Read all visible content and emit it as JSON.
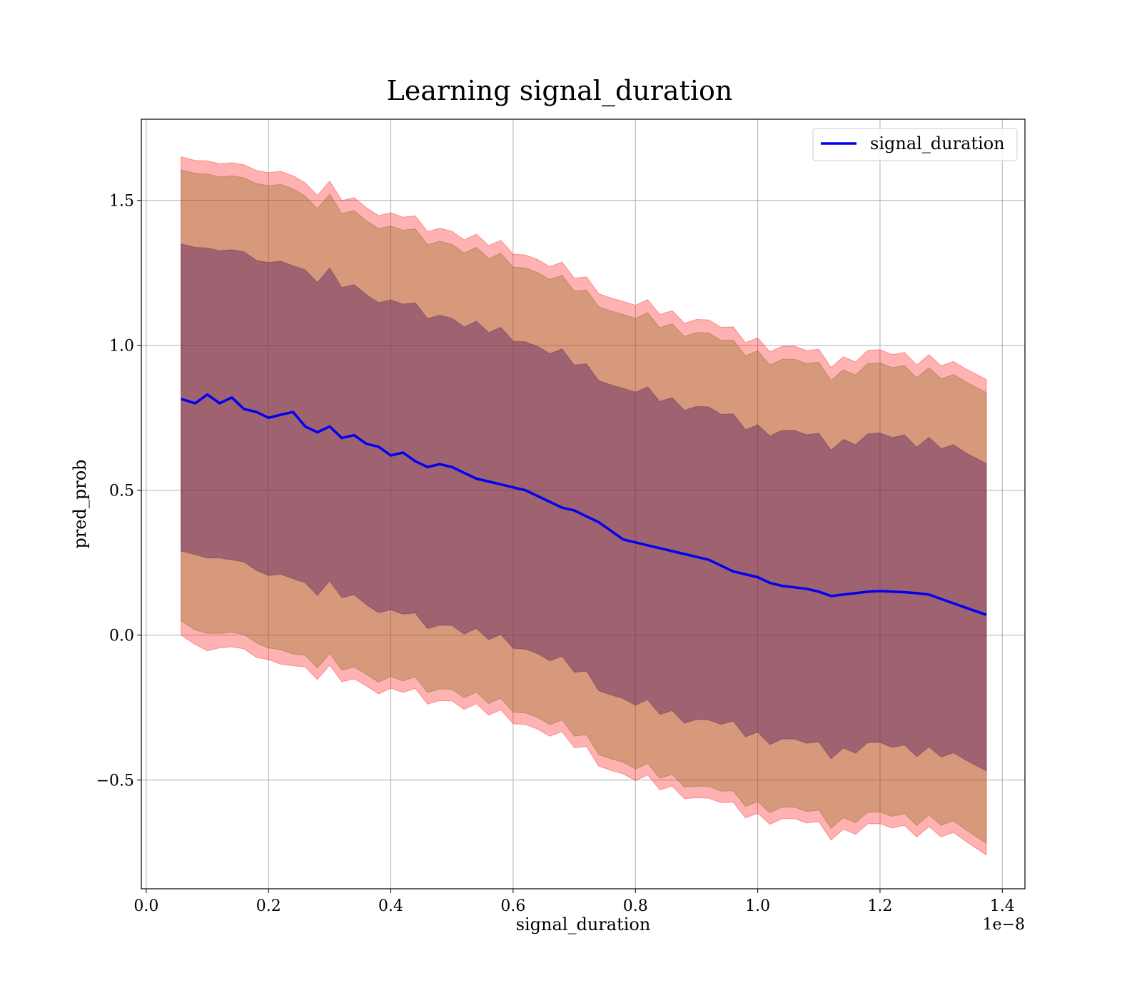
{
  "chart_data": {
    "type": "line",
    "title": "Learning signal_duration",
    "xlabel": "signal_duration",
    "ylabel": "pred_prob",
    "x_offset_label": "1e−8",
    "xlim": [
      -0.008,
      1.437
    ],
    "ylim": [
      -0.875,
      1.78
    ],
    "xticks": [
      0.0,
      0.2,
      0.4,
      0.6,
      0.8,
      1.0,
      1.2,
      1.4
    ],
    "xtick_labels": [
      "0.0",
      "0.2",
      "0.4",
      "0.6",
      "0.8",
      "1.0",
      "1.2",
      "1.4"
    ],
    "yticks": [
      -0.5,
      0.0,
      0.5,
      1.0,
      1.5
    ],
    "ytick_labels": [
      "−0.5",
      "0.0",
      "0.5",
      "1.0",
      "1.5"
    ],
    "grid": true,
    "legend_position": "top-right",
    "colors": {
      "line": "#0000ee",
      "outer_band": "#ff0000",
      "middle_band": "#8b6914",
      "inner_band": "#5a1e64",
      "grid": "#b0b0b0"
    },
    "x": [
      0.057,
      0.08,
      0.1,
      0.12,
      0.14,
      0.16,
      0.18,
      0.2,
      0.22,
      0.24,
      0.26,
      0.28,
      0.3,
      0.32,
      0.34,
      0.36,
      0.38,
      0.4,
      0.42,
      0.44,
      0.46,
      0.48,
      0.5,
      0.52,
      0.54,
      0.56,
      0.58,
      0.6,
      0.62,
      0.64,
      0.66,
      0.68,
      0.7,
      0.72,
      0.74,
      0.76,
      0.78,
      0.8,
      0.82,
      0.84,
      0.86,
      0.88,
      0.9,
      0.92,
      0.94,
      0.96,
      0.98,
      1.0,
      1.02,
      1.04,
      1.06,
      1.08,
      1.1,
      1.12,
      1.14,
      1.16,
      1.18,
      1.2,
      1.22,
      1.24,
      1.26,
      1.28,
      1.3,
      1.32,
      1.34,
      1.374
    ],
    "series": [
      {
        "name": "signal_duration",
        "values": [
          0.815,
          0.8,
          0.83,
          0.8,
          0.82,
          0.78,
          0.77,
          0.75,
          0.76,
          0.77,
          0.72,
          0.7,
          0.72,
          0.68,
          0.69,
          0.66,
          0.65,
          0.62,
          0.63,
          0.6,
          0.58,
          0.59,
          0.58,
          0.56,
          0.54,
          0.53,
          0.52,
          0.51,
          0.5,
          0.48,
          0.46,
          0.44,
          0.43,
          0.41,
          0.39,
          0.36,
          0.33,
          0.32,
          0.31,
          0.3,
          0.29,
          0.28,
          0.27,
          0.26,
          0.24,
          0.22,
          0.21,
          0.2,
          0.18,
          0.17,
          0.165,
          0.16,
          0.15,
          0.135,
          0.14,
          0.145,
          0.15,
          0.152,
          0.15,
          0.148,
          0.145,
          0.14,
          0.125,
          0.11,
          0.095,
          0.07
        ]
      }
    ],
    "bands": [
      {
        "lower": [
          -0.01,
          -0.04,
          -0.03,
          -0.05,
          -0.02,
          -0.07,
          -0.08,
          -0.09,
          -0.1,
          -0.08,
          -0.12,
          -0.14,
          -0.13,
          -0.16,
          -0.15,
          -0.17,
          -0.18,
          -0.2,
          -0.19,
          -0.21,
          -0.23,
          -0.22,
          -0.22,
          -0.24,
          -0.26,
          -0.27,
          -0.28,
          -0.29,
          -0.3,
          -0.32,
          -0.34,
          -0.36,
          -0.38,
          -0.4,
          -0.43,
          -0.46,
          -0.48,
          -0.5,
          -0.51,
          -0.52,
          -0.53,
          -0.54,
          -0.56,
          -0.57,
          -0.58,
          -0.6,
          -0.61,
          -0.62,
          -0.63,
          -0.64,
          -0.645,
          -0.65,
          -0.66,
          -0.68,
          -0.675,
          -0.67,
          -0.665,
          -0.663,
          -0.663,
          -0.665,
          -0.667,
          -0.67,
          -0.685,
          -0.7,
          -0.72,
          -0.75
        ],
        "upper": [
          1.64,
          1.63,
          1.66,
          1.62,
          1.65,
          1.6,
          1.6,
          1.59,
          1.6,
          1.61,
          1.55,
          1.53,
          1.54,
          1.5,
          1.51,
          1.48,
          1.47,
          1.44,
          1.45,
          1.42,
          1.4,
          1.41,
          1.4,
          1.38,
          1.36,
          1.35,
          1.34,
          1.33,
          1.32,
          1.3,
          1.28,
          1.26,
          1.24,
          1.22,
          1.2,
          1.17,
          1.15,
          1.14,
          1.13,
          1.12,
          1.11,
          1.1,
          1.09,
          1.08,
          1.06,
          1.04,
          1.03,
          1.02,
          1.0,
          0.99,
          0.985,
          0.98,
          0.97,
          0.95,
          0.955,
          0.96,
          0.968,
          0.972,
          0.97,
          0.966,
          0.962,
          0.958,
          0.94,
          0.925,
          0.91,
          0.89
        ]
      },
      {
        "lower": [
          0.04,
          0.01,
          0.03,
          0.0,
          0.03,
          -0.02,
          -0.03,
          -0.05,
          -0.05,
          -0.04,
          -0.08,
          -0.1,
          -0.09,
          -0.12,
          -0.11,
          -0.13,
          -0.14,
          -0.16,
          -0.15,
          -0.17,
          -0.19,
          -0.18,
          -0.18,
          -0.2,
          -0.22,
          -0.23,
          -0.24,
          -0.25,
          -0.26,
          -0.28,
          -0.3,
          -0.32,
          -0.34,
          -0.36,
          -0.39,
          -0.42,
          -0.44,
          -0.46,
          -0.47,
          -0.48,
          -0.49,
          -0.5,
          -0.52,
          -0.53,
          -0.54,
          -0.56,
          -0.57,
          -0.58,
          -0.59,
          -0.6,
          -0.605,
          -0.61,
          -0.62,
          -0.64,
          -0.635,
          -0.63,
          -0.625,
          -0.623,
          -0.623,
          -0.625,
          -0.627,
          -0.63,
          -0.645,
          -0.66,
          -0.68,
          -0.71
        ]
      },
      {
        "lower": [
          0.28,
          0.27,
          0.29,
          0.26,
          0.28,
          0.23,
          0.22,
          0.2,
          0.21,
          0.22,
          0.17,
          0.15,
          0.16,
          0.13,
          0.14,
          0.11,
          0.1,
          0.07,
          0.08,
          0.05,
          0.03,
          0.04,
          0.04,
          0.02,
          0.0,
          -0.01,
          -0.02,
          -0.03,
          -0.04,
          -0.06,
          -0.08,
          -0.1,
          -0.12,
          -0.14,
          -0.17,
          -0.2,
          -0.22,
          -0.24,
          -0.25,
          -0.26,
          -0.27,
          -0.28,
          -0.29,
          -0.3,
          -0.31,
          -0.32,
          -0.33,
          -0.34,
          -0.355,
          -0.365,
          -0.37,
          -0.375,
          -0.385,
          -0.4,
          -0.395,
          -0.39,
          -0.385,
          -0.383,
          -0.385,
          -0.388,
          -0.39,
          -0.395,
          -0.41,
          -0.425,
          -0.44,
          -0.46
        ],
        "upper": [
          1.34,
          1.33,
          1.36,
          1.32,
          1.35,
          1.3,
          1.29,
          1.28,
          1.29,
          1.3,
          1.25,
          1.23,
          1.24,
          1.2,
          1.21,
          1.18,
          1.17,
          1.14,
          1.15,
          1.12,
          1.1,
          1.11,
          1.1,
          1.08,
          1.06,
          1.05,
          1.04,
          1.03,
          1.02,
          1.0,
          0.98,
          0.96,
          0.94,
          0.92,
          0.9,
          0.87,
          0.85,
          0.84,
          0.83,
          0.82,
          0.81,
          0.8,
          0.79,
          0.78,
          0.76,
          0.74,
          0.73,
          0.72,
          0.71,
          0.7,
          0.695,
          0.69,
          0.68,
          0.665,
          0.67,
          0.675,
          0.68,
          0.685,
          0.684,
          0.682,
          0.678,
          0.673,
          0.655,
          0.638,
          0.62,
          0.6
        ]
      }
    ],
    "legend": [
      "signal_duration"
    ]
  }
}
